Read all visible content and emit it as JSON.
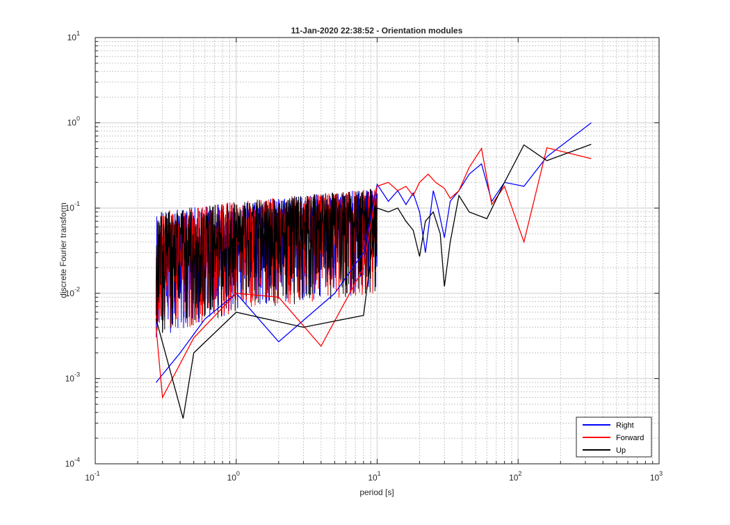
{
  "chart_data": {
    "type": "line",
    "title": "11-Jan-2020 22:38:52 - Orientation modules",
    "xlabel": "period [s]",
    "ylabel": "discrete Fourier transform",
    "xscale": "log",
    "yscale": "log",
    "xlim": [
      0.1,
      1000
    ],
    "ylim": [
      0.0001,
      10
    ],
    "grid": "major and minor",
    "legend_position": "bottom-right",
    "x_ticks": [
      {
        "base": "10",
        "exp": "-1"
      },
      {
        "base": "10",
        "exp": "0"
      },
      {
        "base": "10",
        "exp": "1"
      },
      {
        "base": "10",
        "exp": "2"
      },
      {
        "base": "10",
        "exp": "3"
      }
    ],
    "y_ticks": [
      {
        "base": "10",
        "exp": "-4"
      },
      {
        "base": "10",
        "exp": "-3"
      },
      {
        "base": "10",
        "exp": "-2"
      },
      {
        "base": "10",
        "exp": "-1"
      },
      {
        "base": "10",
        "exp": "0"
      },
      {
        "base": "10",
        "exp": "1"
      }
    ],
    "noise_band": {
      "x_range": [
        0.27,
        10
      ],
      "note": "dense high-frequency region; dominant envelope values",
      "lower_envelope": [
        [
          0.27,
          0.003
        ],
        [
          1,
          0.006
        ],
        [
          10,
          0.01
        ]
      ],
      "center": [
        [
          0.27,
          0.02
        ],
        [
          1,
          0.04
        ],
        [
          10,
          0.08
        ]
      ],
      "upper_envelope": [
        [
          0.27,
          0.09
        ],
        [
          1,
          0.12
        ],
        [
          10,
          0.17
        ]
      ]
    },
    "series": [
      {
        "name": "Right",
        "color": "#0000ff",
        "points": [
          [
            0.27,
            0.0009
          ],
          [
            0.4,
            0.002
          ],
          [
            0.6,
            0.005
          ],
          [
            1.0,
            0.01
          ],
          [
            2.0,
            0.0027
          ],
          [
            5.0,
            0.01
          ],
          [
            8.0,
            0.03
          ],
          [
            10.0,
            0.19
          ],
          [
            12,
            0.12
          ],
          [
            14,
            0.16
          ],
          [
            16,
            0.11
          ],
          [
            18,
            0.15
          ],
          [
            20,
            0.09
          ],
          [
            22,
            0.03
          ],
          [
            25,
            0.16
          ],
          [
            27,
            0.1
          ],
          [
            30,
            0.045
          ],
          [
            33,
            0.12
          ],
          [
            38,
            0.16
          ],
          [
            45,
            0.25
          ],
          [
            55,
            0.33
          ],
          [
            65,
            0.12
          ],
          [
            80,
            0.2
          ],
          [
            110,
            0.18
          ],
          [
            160,
            0.4
          ],
          [
            330,
            1.0
          ]
        ]
      },
      {
        "name": "Forward",
        "color": "#ff0000",
        "points": [
          [
            0.27,
            0.004
          ],
          [
            0.3,
            0.0006
          ],
          [
            0.5,
            0.003
          ],
          [
            1.0,
            0.01
          ],
          [
            2.0,
            0.009
          ],
          [
            4.0,
            0.0024
          ],
          [
            8.0,
            0.02
          ],
          [
            10.0,
            0.18
          ],
          [
            12,
            0.2
          ],
          [
            14,
            0.16
          ],
          [
            16,
            0.18
          ],
          [
            18,
            0.14
          ],
          [
            20,
            0.2
          ],
          [
            23,
            0.25
          ],
          [
            26,
            0.2
          ],
          [
            30,
            0.17
          ],
          [
            33,
            0.13
          ],
          [
            38,
            0.16
          ],
          [
            45,
            0.3
          ],
          [
            55,
            0.5
          ],
          [
            65,
            0.11
          ],
          [
            80,
            0.18
          ],
          [
            110,
            0.04
          ],
          [
            160,
            0.51
          ],
          [
            330,
            0.38
          ]
        ]
      },
      {
        "name": "Up",
        "color": "#000000",
        "points": [
          [
            0.27,
            0.005
          ],
          [
            0.42,
            0.00034
          ],
          [
            0.5,
            0.002
          ],
          [
            1.0,
            0.006
          ],
          [
            3.0,
            0.004
          ],
          [
            8.0,
            0.0055
          ],
          [
            10.0,
            0.1
          ],
          [
            12,
            0.09
          ],
          [
            14,
            0.1
          ],
          [
            16,
            0.07
          ],
          [
            18,
            0.055
          ],
          [
            20,
            0.027
          ],
          [
            22,
            0.07
          ],
          [
            25,
            0.09
          ],
          [
            28,
            0.05
          ],
          [
            30,
            0.012
          ],
          [
            33,
            0.04
          ],
          [
            38,
            0.14
          ],
          [
            45,
            0.09
          ],
          [
            60,
            0.075
          ],
          [
            80,
            0.2
          ],
          [
            110,
            0.55
          ],
          [
            160,
            0.36
          ],
          [
            330,
            0.56
          ]
        ]
      }
    ]
  }
}
